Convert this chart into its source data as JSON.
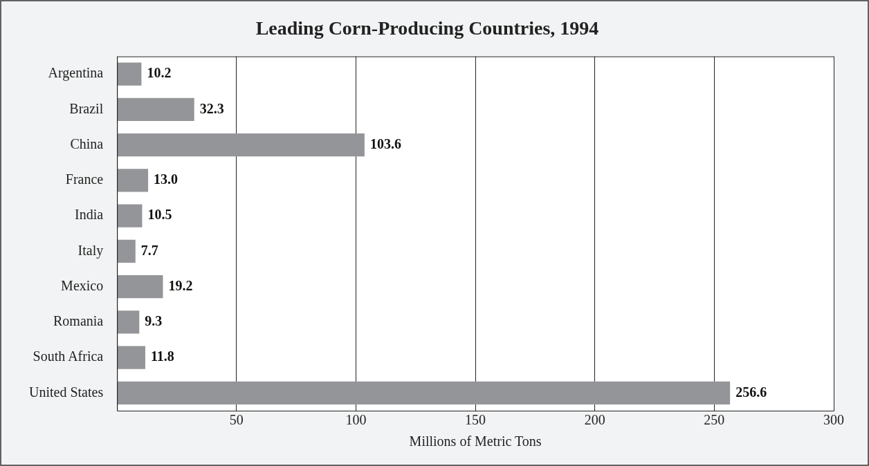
{
  "chart_data": {
    "type": "bar",
    "orientation": "horizontal",
    "title": "Leading Corn-Producing Countries, 1994",
    "xlabel": "Millions of Metric Tons",
    "categories": [
      "Argentina",
      "Brazil",
      "China",
      "France",
      "India",
      "Italy",
      "Mexico",
      "Romania",
      "South Africa",
      "United States"
    ],
    "values": [
      10.2,
      32.3,
      103.6,
      13.0,
      10.5,
      7.7,
      19.2,
      9.3,
      11.8,
      256.6
    ],
    "value_labels": [
      "10.2",
      "32.3",
      "103.6",
      "13.0",
      "10.5",
      "7.7",
      "19.2",
      "9.3",
      "11.8",
      "256.6"
    ],
    "color": "#939598",
    "xlim": [
      0,
      300
    ],
    "xticks": [
      {
        "value": 0,
        "label": null
      },
      50,
      100,
      150,
      200,
      250,
      300
    ],
    "grid": "x",
    "legend": false
  }
}
